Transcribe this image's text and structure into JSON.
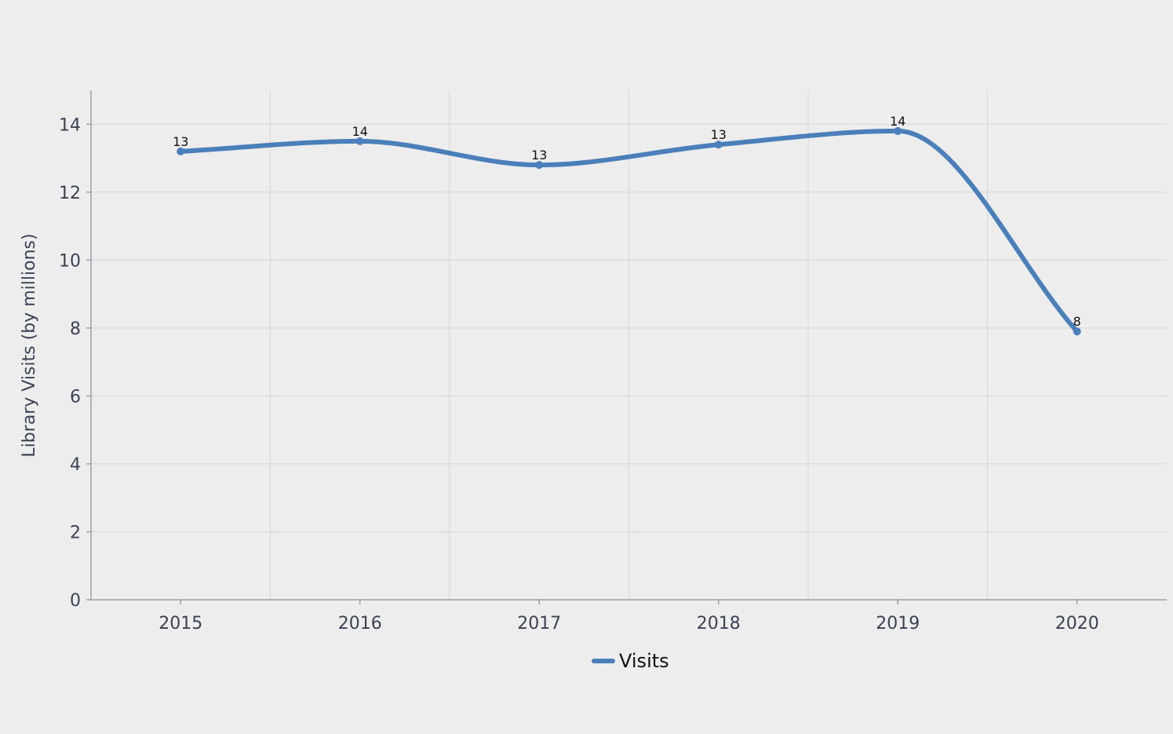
{
  "chart_data": {
    "type": "line",
    "smooth": true,
    "x": [
      "2015",
      "2016",
      "2017",
      "2018",
      "2019",
      "2020"
    ],
    "series": [
      {
        "name": "Visits",
        "values": [
          13.2,
          13.5,
          12.8,
          13.4,
          13.8,
          7.9
        ],
        "labels": [
          "13",
          "14",
          "13",
          "13",
          "14",
          "8"
        ],
        "color": "#4a7fba"
      }
    ],
    "ylabel": "Library Visits (by millions)",
    "xlabel": "",
    "ylim": [
      0,
      15
    ],
    "yticks": [
      0,
      2,
      4,
      6,
      8,
      10,
      12,
      14
    ],
    "grid": true,
    "legend_position": "bottom-center"
  }
}
